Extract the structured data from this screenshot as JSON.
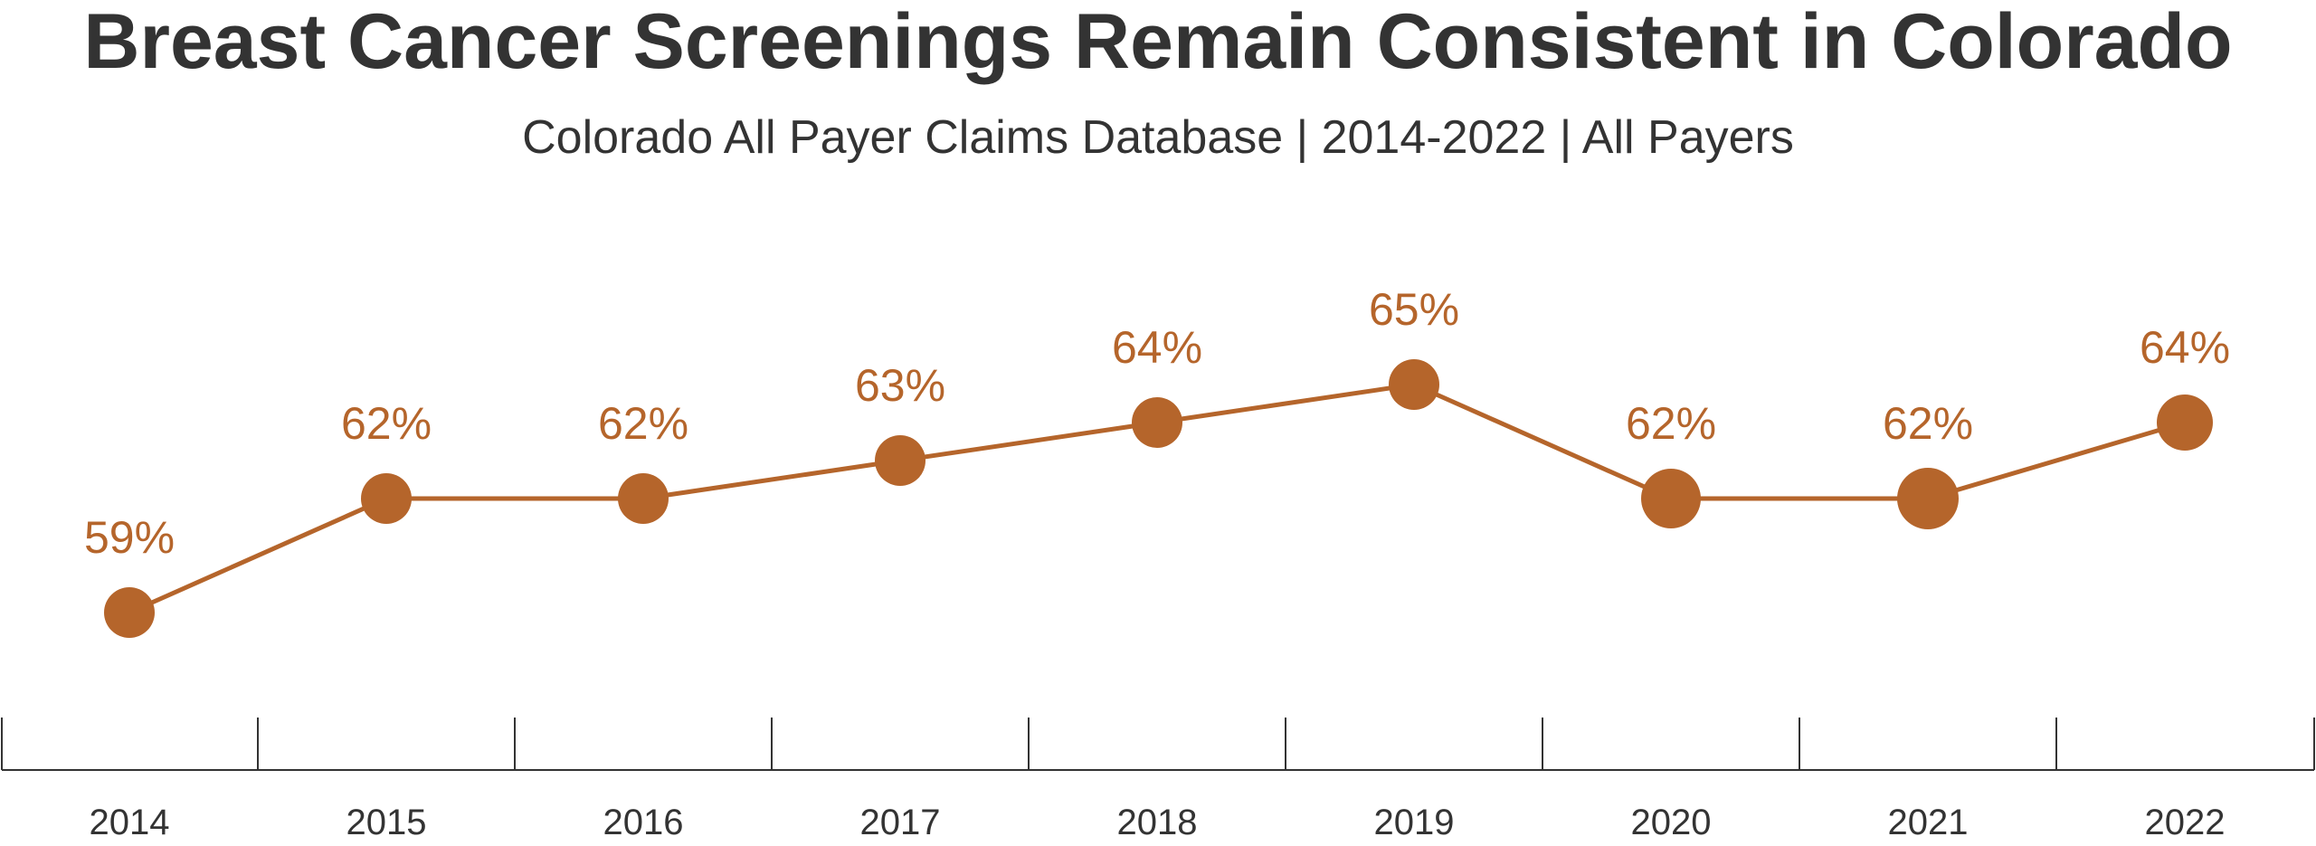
{
  "chart_data": {
    "type": "line",
    "title": "Breast Cancer Screenings Remain Consistent in Colorado",
    "subtitle": "Colorado All Payer Claims Database | 2014-2022 | All Payers",
    "x": [
      "2014",
      "2015",
      "2016",
      "2017",
      "2018",
      "2019",
      "2020",
      "2021",
      "2022"
    ],
    "series": [
      {
        "values": [
          59,
          62,
          62,
          63,
          64,
          65,
          62,
          62,
          64
        ],
        "labels": [
          "59%",
          "62%",
          "62%",
          "63%",
          "64%",
          "65%",
          "62%",
          "62%",
          "64%"
        ]
      }
    ],
    "xlabel": "",
    "ylabel": "",
    "grid": false,
    "legend": "none",
    "color": "#b5652b"
  }
}
